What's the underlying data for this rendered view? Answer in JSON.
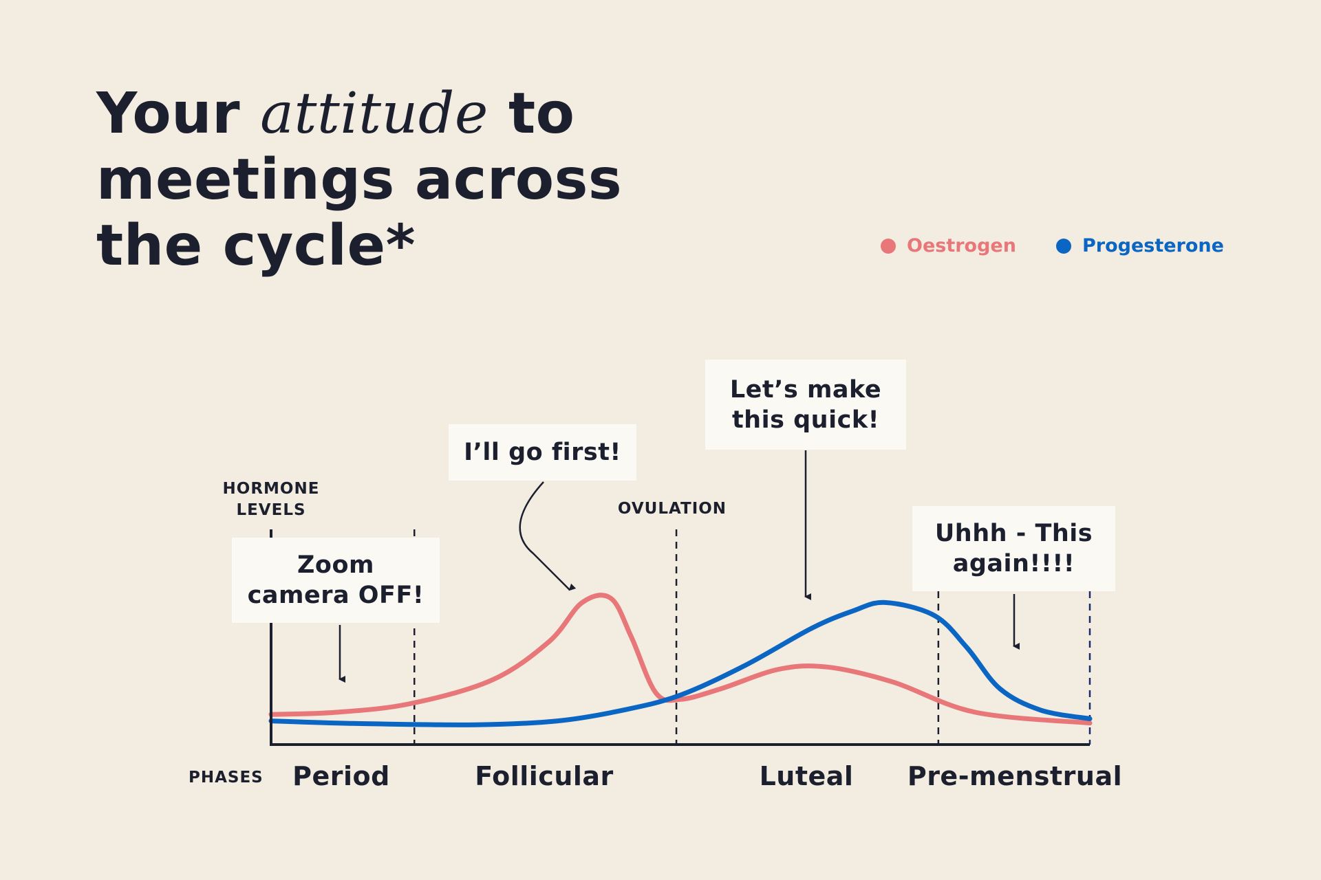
{
  "title": {
    "part1": "Your",
    "italic": "attitude",
    "part2": "to",
    "line2": "meetings across",
    "line3": "the cycle*"
  },
  "colors": {
    "background": "#f3ece0",
    "text": "#1c1f2e",
    "oestrogen": "#e8777a",
    "progesterone": "#0a66c2",
    "callout_bg": "#fbf9f4"
  },
  "chart_data": {
    "type": "line",
    "legend_position": "top-right",
    "y_axis_label": [
      "HORMONE",
      "LEVELS"
    ],
    "x_axis_label": "PHASES",
    "xlim": [
      0,
      100
    ],
    "ylim": [
      0,
      100
    ],
    "ovulation_label": "OVULATION",
    "series": [
      {
        "name": "Oestrogen",
        "color": "#e8777a",
        "points": [
          [
            0,
            14
          ],
          [
            8,
            15
          ],
          [
            17,
            19
          ],
          [
            27,
            30
          ],
          [
            34,
            48
          ],
          [
            38,
            66
          ],
          [
            41.5,
            68
          ],
          [
            44,
            50
          ],
          [
            47,
            24
          ],
          [
            50,
            21
          ],
          [
            55,
            26
          ],
          [
            62,
            35
          ],
          [
            68,
            36
          ],
          [
            76,
            29
          ],
          [
            86,
            15
          ],
          [
            100,
            10
          ]
        ]
      },
      {
        "name": "Progesterone",
        "color": "#0a66c2",
        "points": [
          [
            0,
            11
          ],
          [
            10,
            9.8
          ],
          [
            25,
            9.2
          ],
          [
            35,
            11
          ],
          [
            43,
            16
          ],
          [
            50,
            23
          ],
          [
            58,
            37
          ],
          [
            66,
            54
          ],
          [
            71,
            62
          ],
          [
            75,
            66
          ],
          [
            81,
            60
          ],
          [
            85,
            45
          ],
          [
            89,
            26
          ],
          [
            94,
            16
          ],
          [
            100,
            12
          ]
        ]
      }
    ],
    "phases": [
      {
        "label": "Period",
        "start": 0,
        "end": 17.5
      },
      {
        "label": "Follicular",
        "start": 17.5,
        "end": 49.5
      },
      {
        "label": "Luteal",
        "start": 49.5,
        "end": 81.5
      },
      {
        "label": "Pre-menstrual",
        "start": 81.5,
        "end": 100
      }
    ],
    "phase_boundaries": [
      17.5,
      49.5,
      81.5,
      100
    ],
    "annotations": [
      {
        "text": "Zoom\ncamera OFF!",
        "points_to": [
          8.5,
          25
        ]
      },
      {
        "text": "I’ll go first!",
        "points_to": [
          37,
          70
        ]
      },
      {
        "text": "Let’s make\nthis quick!",
        "points_to": [
          65,
          65
        ]
      },
      {
        "text": "Uhhh - This\nagain!!!!",
        "points_to": [
          91.5,
          40
        ]
      }
    ]
  }
}
